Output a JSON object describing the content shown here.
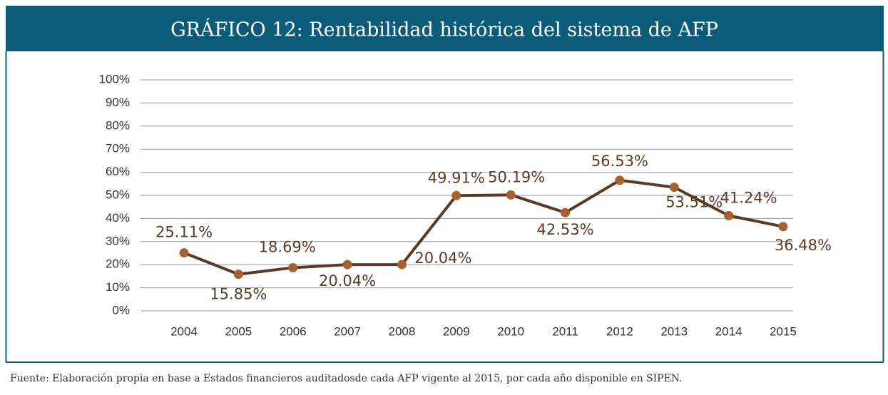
{
  "chart_data": {
    "type": "line",
    "title": "GRÁFICO 12: Rentabilidad histórica del sistema de AFP",
    "source": "Fuente: Elaboración propia en base a Estados financieros auditadosde cada AFP vigente al 2015, por cada año disponible en SIPEN.",
    "categories": [
      "2004",
      "2005",
      "2006",
      "2007",
      "2008",
      "2009",
      "2010",
      "2011",
      "2012",
      "2013",
      "2014",
      "2015"
    ],
    "series": [
      {
        "name": "Rentabilidad",
        "color": "#5b3a25",
        "marker_color": "#a5622e",
        "values": [
          25.11,
          15.85,
          18.69,
          20.04,
          20.04,
          49.91,
          50.19,
          42.53,
          56.53,
          53.51,
          41.24,
          36.48
        ],
        "value_labels": [
          "25.11%",
          "15.85%",
          "18.69%",
          "20.04%",
          "20.04%",
          "49.91%",
          "50.19%",
          "42.53%",
          "56.53%",
          "53.51%",
          "41.24%",
          "36.48%"
        ]
      }
    ],
    "ylim": [
      0,
      100
    ],
    "yticks": [
      {
        "value": 0,
        "label": "0%"
      },
      {
        "value": 10,
        "label": "10%"
      },
      {
        "value": 20,
        "label": "20%"
      },
      {
        "value": 30,
        "label": "30%"
      },
      {
        "value": 40,
        "label": "40%"
      },
      {
        "value": 50,
        "label": "50%"
      },
      {
        "value": 60,
        "label": "60%"
      },
      {
        "value": 70,
        "label": "70%"
      },
      {
        "value": 80,
        "label": "80%"
      },
      {
        "value": 90,
        "label": "90%"
      },
      {
        "value": 100,
        "label": "100%"
      }
    ],
    "grid": true
  }
}
